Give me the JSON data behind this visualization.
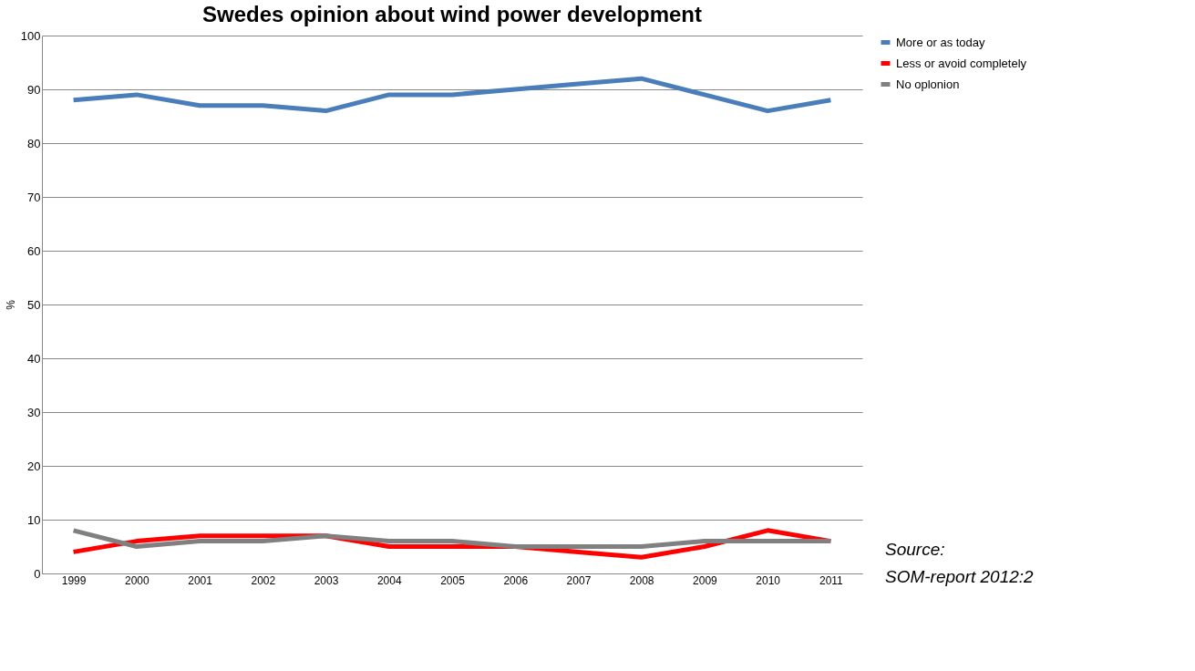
{
  "chart_data": {
    "type": "line",
    "title": "Swedes opinion about wind power development",
    "ylabel": "%",
    "categories": [
      "1999",
      "2000",
      "2001",
      "2002",
      "2003",
      "2004",
      "2005",
      "2006",
      "2007",
      "2008",
      "2009",
      "2010",
      "2011"
    ],
    "series": [
      {
        "name": "More or as today",
        "color": "#4a7ebb",
        "values": [
          88,
          89,
          87,
          87,
          86,
          89,
          89,
          90,
          91,
          92,
          89,
          86,
          88
        ]
      },
      {
        "name": "Less or avoid completely",
        "color": "#ff0000",
        "values": [
          4,
          6,
          7,
          7,
          7,
          5,
          5,
          5,
          4,
          3,
          5,
          8,
          6
        ]
      },
      {
        "name": "No oplonion",
        "color": "#808080",
        "values": [
          8,
          5,
          6,
          6,
          7,
          6,
          6,
          5,
          5,
          5,
          6,
          6,
          6
        ]
      }
    ],
    "ylim": [
      0,
      100
    ],
    "yticks": [
      0,
      10,
      20,
      30,
      40,
      50,
      60,
      70,
      80,
      90,
      100
    ],
    "grid": "y",
    "legend": "right",
    "marker": "none",
    "line_style": "solid",
    "annotations": [
      "Source: SOM-report 2012:2"
    ]
  }
}
